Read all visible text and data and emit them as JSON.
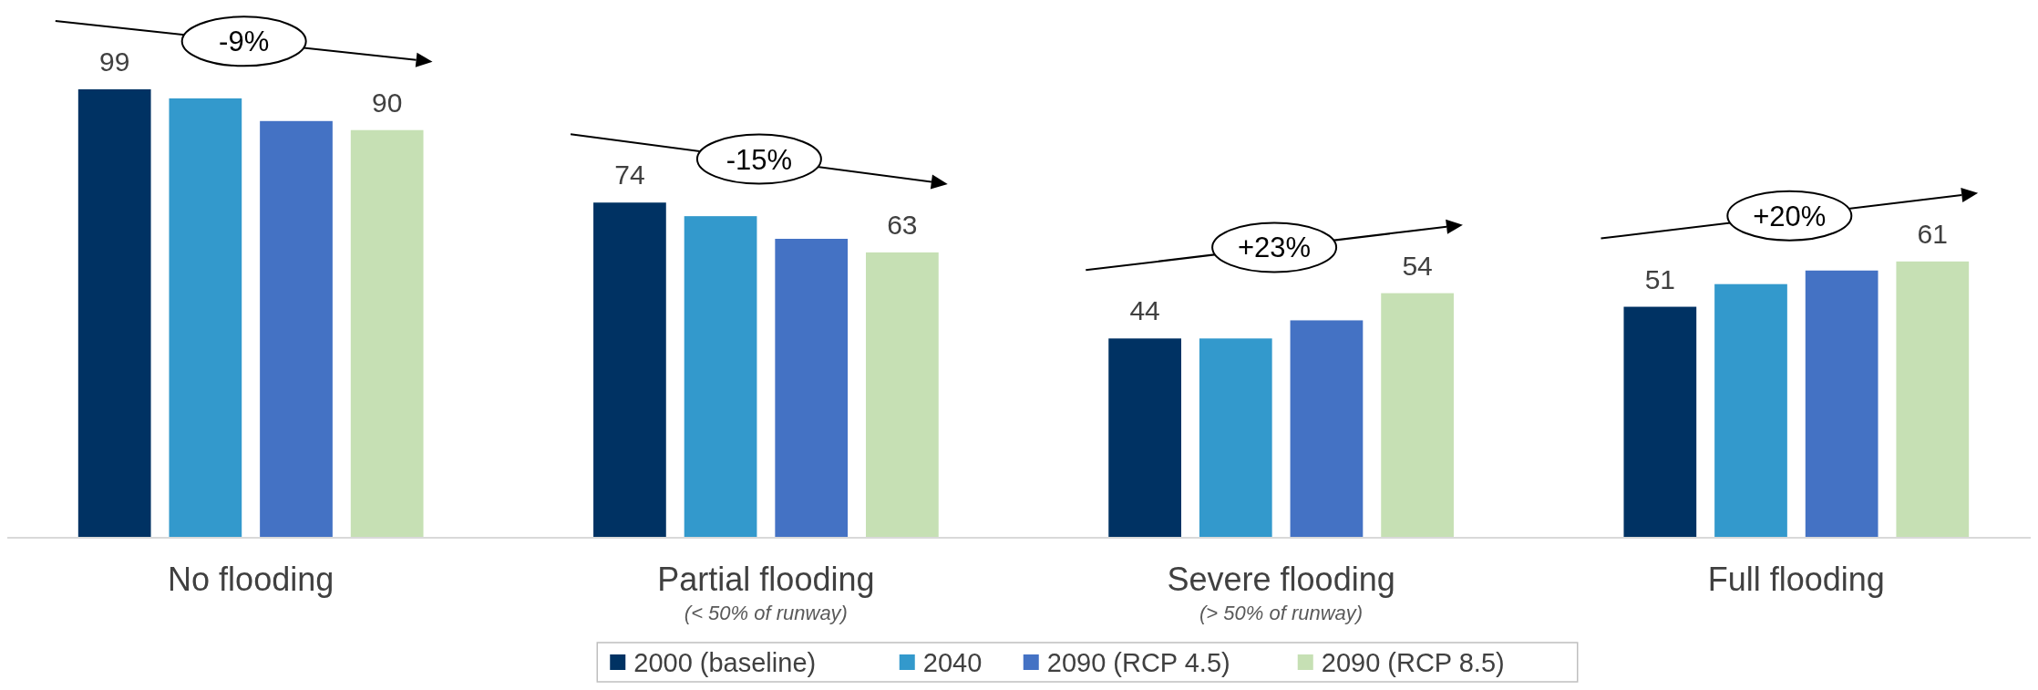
{
  "chart_data": {
    "type": "bar",
    "categories": [
      "No flooding",
      "Partial flooding\n(< 50% of runway)",
      "Severe flooding\n(> 50% of runway)",
      "Full flooding"
    ],
    "series": [
      {
        "name": "2000 (baseline)",
        "color": "#003263",
        "values": [
          99,
          74,
          44,
          51
        ],
        "value_labels": [
          "99",
          "74",
          "44",
          "51"
        ]
      },
      {
        "name": "2040",
        "color": "#3399cc",
        "values": [
          97,
          71,
          44,
          56
        ],
        "value_labels": [
          null,
          null,
          null,
          null
        ]
      },
      {
        "name": "2090 (RCP 4.5)",
        "color": "#4472c4",
        "values": [
          92,
          66,
          48,
          59
        ],
        "value_labels": [
          null,
          null,
          null,
          null
        ]
      },
      {
        "name": "2090 (RCP 8.5)",
        "color": "#c6e0b4",
        "values": [
          90,
          63,
          54,
          61
        ],
        "value_labels": [
          "90",
          "63",
          "54",
          "61"
        ]
      }
    ],
    "annotations": [
      "-9%",
      "-15%",
      "+23%",
      "+20%"
    ],
    "legend": "bottom",
    "grid": false
  }
}
